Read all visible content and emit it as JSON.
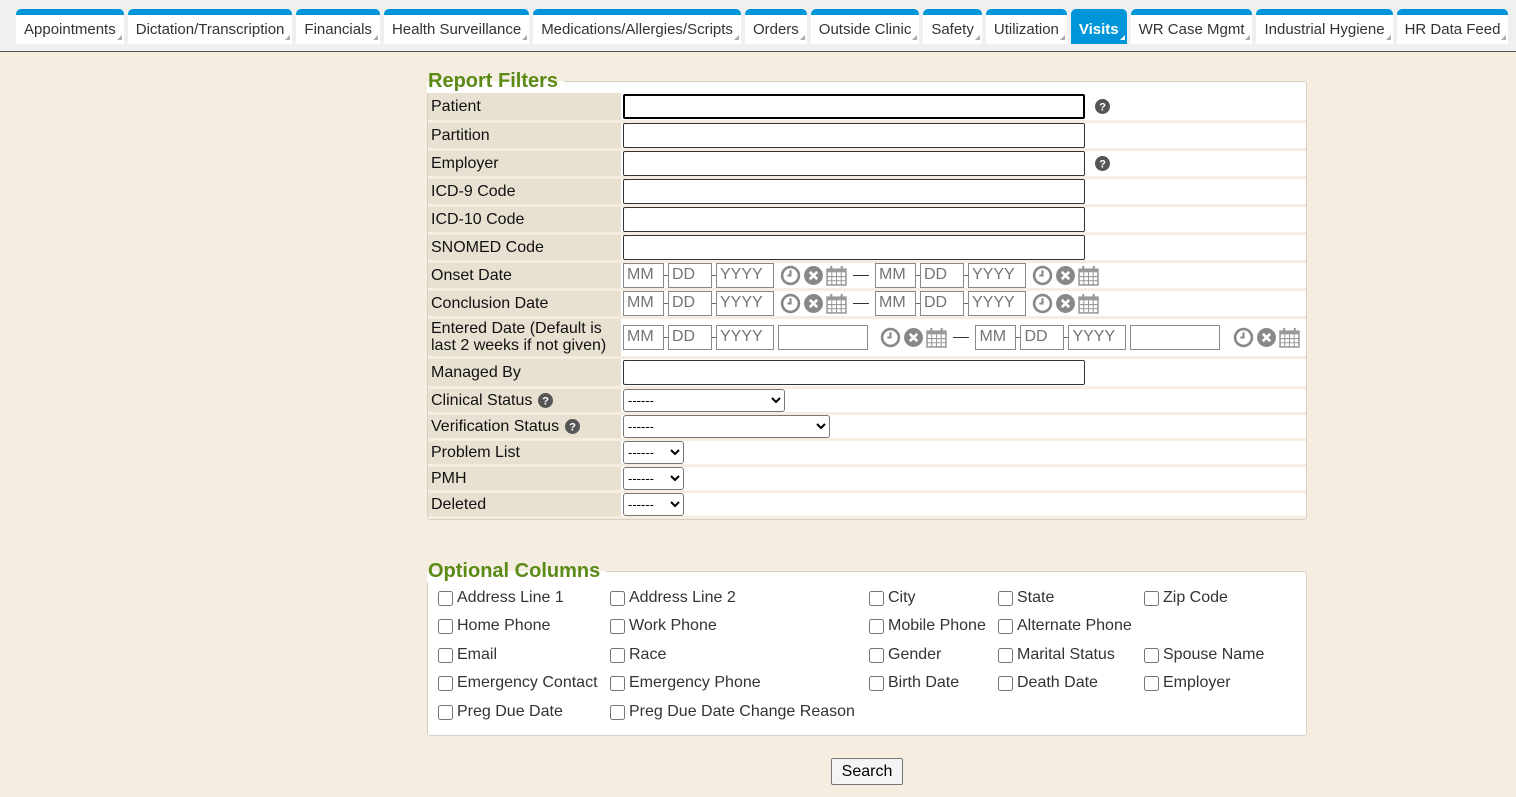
{
  "tabs": [
    {
      "label": "Appointments"
    },
    {
      "label": "Dictation/Transcription"
    },
    {
      "label": "Financials"
    },
    {
      "label": "Health Surveillance"
    },
    {
      "label": "Medications/Allergies/Scripts"
    },
    {
      "label": "Orders"
    },
    {
      "label": "Outside Clinic"
    },
    {
      "label": "Safety"
    },
    {
      "label": "Utilization"
    },
    {
      "label": "Visits",
      "active": true
    },
    {
      "label": "WR Case Mgmt"
    },
    {
      "label": "Industrial Hygiene"
    },
    {
      "label": "HR Data Feed"
    }
  ],
  "filters": {
    "legend": "Report Filters",
    "rows": [
      {
        "label": "Patient",
        "type": "text",
        "help": true,
        "focus": true
      },
      {
        "label": "Partition",
        "type": "text"
      },
      {
        "label": "Employer",
        "type": "text",
        "help": true
      },
      {
        "label": "ICD-9 Code",
        "type": "text"
      },
      {
        "label": "ICD-10 Code",
        "type": "text"
      },
      {
        "label": "SNOMED Code",
        "type": "text"
      },
      {
        "label": "Onset Date",
        "type": "daterange"
      },
      {
        "label": "Conclusion Date",
        "type": "daterange"
      },
      {
        "label": "Entered Date (Default is last 2 weeks if not given)",
        "type": "datetimerange"
      },
      {
        "label": "Managed By",
        "type": "text"
      },
      {
        "label": "Clinical Status",
        "type": "select",
        "help": true,
        "value": "------",
        "width": "wide"
      },
      {
        "label": "Verification Status",
        "type": "select",
        "help": true,
        "value": "------",
        "width": "wider"
      },
      {
        "label": "Problem List",
        "type": "select",
        "value": "------"
      },
      {
        "label": "PMH",
        "type": "select",
        "value": "------"
      },
      {
        "label": "Deleted",
        "type": "select",
        "value": "------"
      }
    ],
    "placeholders": {
      "month": "MM",
      "day": "DD",
      "year": "YYYY"
    }
  },
  "optional": {
    "legend": "Optional Columns",
    "columns": [
      [
        "Address Line 1",
        "Home Phone",
        "Email",
        "Emergency Contact",
        "Preg Due Date"
      ],
      [
        "Address Line 2",
        "Work Phone",
        "Race",
        "Emergency Phone",
        "Preg Due Date Change Reason"
      ],
      [
        "City",
        "Mobile Phone",
        "Gender",
        "Birth Date"
      ],
      [
        "State",
        "Alternate Phone",
        "Marital Status",
        "Death Date"
      ],
      [
        "Zip Code",
        "",
        "Spouse Name",
        "Employer"
      ]
    ]
  },
  "search_label": "Search",
  "colors": {
    "tab_accent": "#0095d9",
    "legend": "#5b8a17",
    "label_bg": "#e8e1d2",
    "page_bg": "#f4ede0"
  }
}
